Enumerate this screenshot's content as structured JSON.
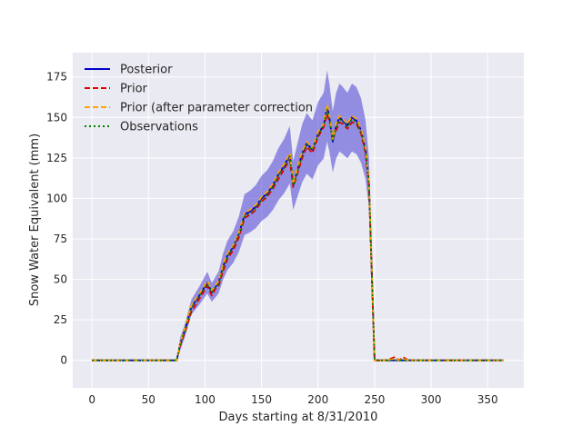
{
  "chart_data": {
    "type": "line",
    "title": "",
    "xlabel": "Days starting at 8/31/2010",
    "ylabel": "Snow Water Equivalent (mm)",
    "xlim": [
      -17,
      382
    ],
    "ylim": [
      -17,
      190
    ],
    "xticks": [
      0,
      50,
      100,
      150,
      200,
      250,
      300,
      350
    ],
    "yticks": [
      0,
      25,
      50,
      75,
      100,
      125,
      150,
      175
    ],
    "grid": true,
    "background": "#eaeaf2",
    "legend_position": "top-left",
    "x": [
      0,
      70,
      75,
      78,
      82,
      88,
      95,
      102,
      106,
      109,
      112,
      116,
      120,
      125,
      130,
      135,
      140,
      145,
      150,
      155,
      160,
      165,
      170,
      175,
      178,
      182,
      186,
      190,
      195,
      200,
      205,
      208,
      210,
      213,
      216,
      219,
      222,
      226,
      230,
      234,
      238,
      242,
      245,
      248,
      250,
      252,
      260,
      268,
      272,
      275,
      280,
      290,
      300,
      320,
      340,
      364
    ],
    "series": [
      {
        "name": "Posterior",
        "style": "solid",
        "color": "#0000cc",
        "values": [
          0,
          0,
          0,
          10,
          18,
          33,
          40,
          48,
          42,
          45,
          48,
          58,
          65,
          70,
          78,
          90,
          92,
          95,
          100,
          103,
          108,
          115,
          120,
          127,
          108,
          118,
          128,
          134,
          130,
          140,
          145,
          157,
          150,
          135,
          145,
          150,
          148,
          145,
          150,
          148,
          142,
          130,
          110,
          45,
          0,
          0,
          0,
          0,
          0,
          0,
          0,
          0,
          0,
          0,
          0,
          0
        ]
      },
      {
        "name": "Prior",
        "style": "dashed",
        "color": "#dd0000",
        "values": [
          0,
          0,
          0,
          9,
          17,
          30,
          38,
          46,
          40,
          44,
          46,
          55,
          63,
          68,
          76,
          88,
          90,
          93,
          98,
          101,
          106,
          112,
          118,
          124,
          107,
          116,
          125,
          132,
          128,
          138,
          144,
          152,
          148,
          137,
          142,
          147,
          146,
          143,
          147,
          146,
          140,
          128,
          108,
          42,
          0,
          0,
          0,
          2,
          0,
          2,
          0,
          0,
          0,
          0,
          0,
          0
        ]
      },
      {
        "name": "Prior (after parameter correction",
        "style": "dashed",
        "color": "#ffa500",
        "values": [
          0,
          0,
          0,
          11,
          19,
          34,
          41,
          49,
          43,
          46,
          49,
          59,
          66,
          71,
          79,
          91,
          93,
          96,
          101,
          104,
          109,
          116,
          121,
          128,
          109,
          119,
          129,
          135,
          131,
          141,
          146,
          158,
          151,
          136,
          146,
          151,
          149,
          146,
          151,
          149,
          143,
          131,
          111,
          46,
          0,
          0,
          0,
          1,
          0,
          1,
          0,
          0,
          0,
          0,
          0,
          0
        ]
      },
      {
        "name": "Observations",
        "style": "dotted",
        "color": "#008000",
        "values": [
          0,
          0,
          0,
          10,
          18,
          32,
          40,
          47,
          42,
          45,
          47,
          57,
          64,
          70,
          78,
          89,
          91,
          94,
          99,
          102,
          107,
          114,
          119,
          126,
          108,
          117,
          127,
          133,
          130,
          139,
          145,
          155,
          149,
          136,
          144,
          149,
          147,
          144,
          149,
          147,
          141,
          129,
          109,
          44,
          0,
          0,
          0,
          0,
          0,
          0,
          0,
          0,
          0,
          0,
          0,
          0
        ]
      }
    ],
    "uncertainty_band": {
      "color": "#4b3fd6",
      "spread_fraction": 0.14
    }
  }
}
